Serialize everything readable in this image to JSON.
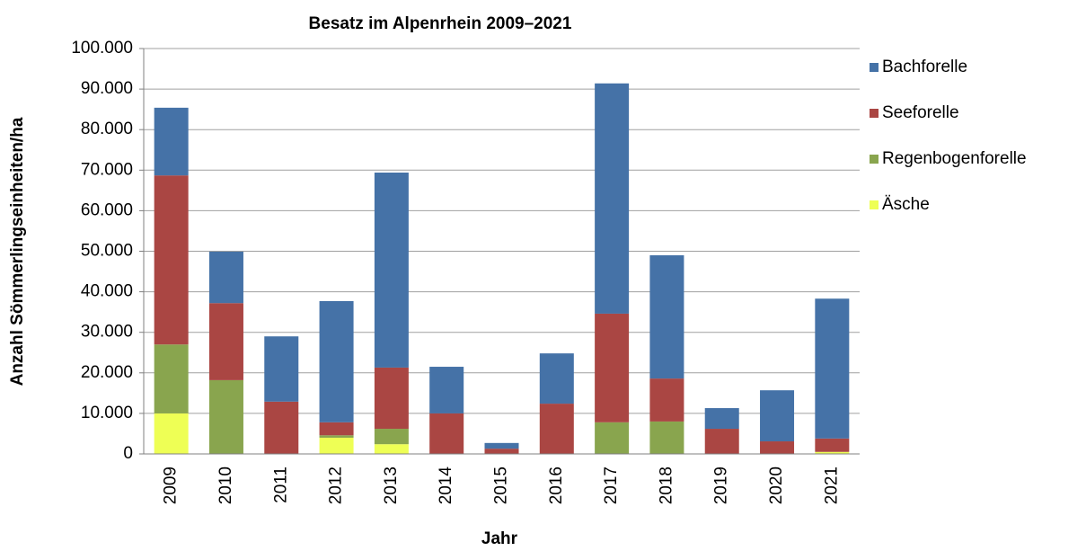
{
  "chart_data": {
    "type": "stacked_bar",
    "title": "Besatz im Alpenrhein 2009–2021",
    "x_label": "Jahr",
    "y_label": "Anzahl Sömmerlingseinheiten/ha",
    "categories": [
      "2009",
      "2010",
      "2011",
      "2012",
      "2013",
      "2014",
      "2015",
      "2016",
      "2017",
      "2018",
      "2019",
      "2020",
      "2021"
    ],
    "series": [
      {
        "name": "Bachforelle",
        "color": "#4572a7",
        "values": [
          16700,
          12700,
          16100,
          29900,
          48100,
          11500,
          1400,
          12400,
          56800,
          30400,
          5100,
          12600,
          34500
        ]
      },
      {
        "name": "Seeforelle",
        "color": "#aa4643",
        "values": [
          41700,
          19000,
          12900,
          3200,
          15100,
          10000,
          1300,
          12400,
          26800,
          10600,
          6200,
          3100,
          3300
        ]
      },
      {
        "name": "Regenbogenforelle",
        "color": "#89a54e",
        "values": [
          17000,
          18200,
          0,
          600,
          3800,
          0,
          0,
          0,
          7800,
          8000,
          0,
          0,
          0
        ]
      },
      {
        "name": "Äsche",
        "color": "#eeff55",
        "values": [
          10000,
          0,
          0,
          4000,
          2400,
          0,
          0,
          0,
          0,
          0,
          0,
          0,
          500
        ]
      }
    ],
    "ylim": [
      0,
      100000
    ],
    "yticks": [
      0,
      {
        "value": 10000,
        "label": "10.000"
      },
      {
        "value": 20000,
        "label": "20.000"
      },
      {
        "value": 30000,
        "label": "30.000"
      },
      {
        "value": 40000,
        "label": "40.000"
      },
      {
        "value": 50000,
        "label": "50.000"
      },
      {
        "value": 60000,
        "label": "60.000"
      },
      {
        "value": 70000,
        "label": "70.000"
      },
      {
        "value": 80000,
        "label": "80.000"
      },
      {
        "value": 90000,
        "label": "90.000"
      },
      {
        "value": 100000,
        "label": "100.000"
      }
    ],
    "grid": true,
    "legend": "right"
  }
}
